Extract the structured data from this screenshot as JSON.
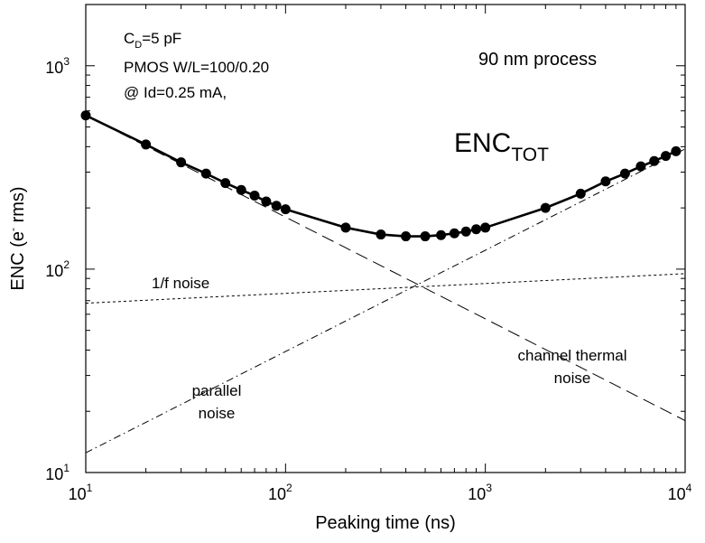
{
  "chart_data": {
    "type": "line",
    "title": "",
    "xlabel": "Peaking time (ns)",
    "ylabel_main": "ENC (e",
    "ylabel_sup": "-",
    "ylabel_tail": " rms)",
    "xscale": "log",
    "yscale": "log",
    "xlim": [
      10,
      10000
    ],
    "ylim": [
      10,
      2000
    ],
    "grid": false,
    "x_ticks": [
      {
        "base": "10",
        "exp": "1",
        "value": 10
      },
      {
        "base": "10",
        "exp": "2",
        "value": 100
      },
      {
        "base": "10",
        "exp": "3",
        "value": 1000
      },
      {
        "base": "10",
        "exp": "4",
        "value": 10000
      }
    ],
    "y_ticks": [
      {
        "base": "10",
        "exp": "1",
        "value": 10
      },
      {
        "base": "10",
        "exp": "2",
        "value": 100
      },
      {
        "base": "10",
        "exp": "3",
        "value": 1000
      }
    ],
    "series": [
      {
        "name": "ENC",
        "name_sub": "TOT",
        "style": "solid-markers",
        "x": [
          10,
          20,
          30,
          40,
          50,
          60,
          70,
          80,
          90,
          100,
          200,
          300,
          400,
          500,
          600,
          700,
          800,
          900,
          1000,
          2000,
          3000,
          4000,
          5000,
          6000,
          7000,
          8000,
          9000
        ],
        "y": [
          570,
          410,
          335,
          295,
          265,
          245,
          230,
          215,
          205,
          197,
          160,
          148,
          145,
          145,
          147,
          150,
          153,
          157,
          160,
          200,
          235,
          270,
          295,
          320,
          340,
          360,
          380
        ]
      },
      {
        "name": "channel thermal noise",
        "style": "long-dash",
        "x": [
          10,
          10000
        ],
        "y": [
          570,
          18
        ]
      },
      {
        "name": "1/f noise",
        "style": "short-dash",
        "x": [
          10,
          10000
        ],
        "y": [
          68,
          95
        ]
      },
      {
        "name": "parallel noise",
        "style": "dash-dot",
        "x": [
          10,
          10000
        ],
        "y": [
          12.5,
          390
        ]
      }
    ],
    "annotations": {
      "cd_main": "C",
      "cd_sub": "D",
      "cd_tail": "=5 pF",
      "pmos": "PMOS W/L=100/0.20",
      "id_line": "@ Id=0.25 mA,",
      "process": "90 nm process",
      "enc_main": "ENC",
      "enc_sub": "TOT",
      "one_f_1": "1/f noise",
      "parallel_1": "parallel",
      "parallel_2": "noise",
      "channel_1": "channel thermal",
      "channel_2": "noise"
    }
  }
}
